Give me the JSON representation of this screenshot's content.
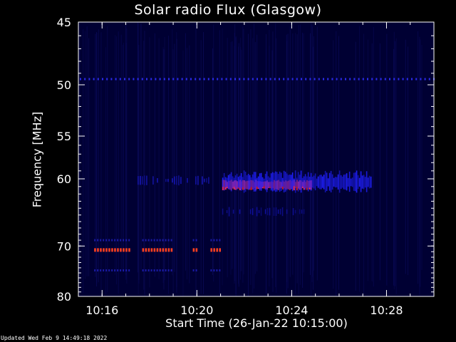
{
  "chart_data": {
    "type": "heatmap",
    "title": "Solar radio Flux (Glasgow)",
    "xlabel": "Start Time (26-Jan-22 10:15:00)",
    "ylabel": "Frequency [MHz]",
    "xlim": [
      "10:15:00",
      "10:30:00"
    ],
    "ylim": [
      80,
      45
    ],
    "x_ticks": [
      "10:16",
      "10:20",
      "10:24",
      "10:28"
    ],
    "y_ticks": [
      45,
      50,
      55,
      60,
      70,
      80
    ],
    "y_scale": "reciprocal",
    "background_color": "#000033",
    "features": [
      {
        "description": "faint narrowband line",
        "freq_mhz": 49.5,
        "t_start": "10:15:00",
        "t_end": "10:30:00",
        "intensity": "low",
        "color": "#3030ff"
      },
      {
        "description": "bright band",
        "freq_mhz": 60.8,
        "t_start": "10:21:04",
        "t_end": "10:24:48",
        "intensity": "high",
        "color": "#e02020"
      },
      {
        "description": "medium band",
        "freq_mhz": 60.5,
        "t_start": "10:21:04",
        "t_end": "10:27:20",
        "intensity": "medium",
        "color": "#2020ff"
      },
      {
        "description": "weak band",
        "freq_mhz": 60.2,
        "t_start": "10:17:30",
        "t_end": "10:20:30",
        "intensity": "low",
        "color": "#1818c0"
      },
      {
        "description": "faint line",
        "freq_mhz": 64.5,
        "t_start": "10:21:04",
        "t_end": "10:24:50",
        "intensity": "low",
        "color": "#1010a0"
      },
      {
        "description": "intermittent bright line",
        "freq_mhz": 70.7,
        "t_start": "10:15:40",
        "t_end": "10:21:00",
        "intensity": "high",
        "color": "#ff4020"
      },
      {
        "description": "intermittent weak line",
        "freq_mhz": 69.0,
        "t_start": "10:15:40",
        "t_end": "10:21:00",
        "intensity": "low",
        "color": "#2020c0"
      },
      {
        "description": "intermittent weak line",
        "freq_mhz": 74.5,
        "t_start": "10:15:40",
        "t_end": "10:21:00",
        "intensity": "low",
        "color": "#2020c0"
      }
    ]
  },
  "footer": "Updated Wed Feb  9 14:49:18 2022",
  "colors": {
    "page_background": "#000000",
    "axes": "#ffffff"
  }
}
